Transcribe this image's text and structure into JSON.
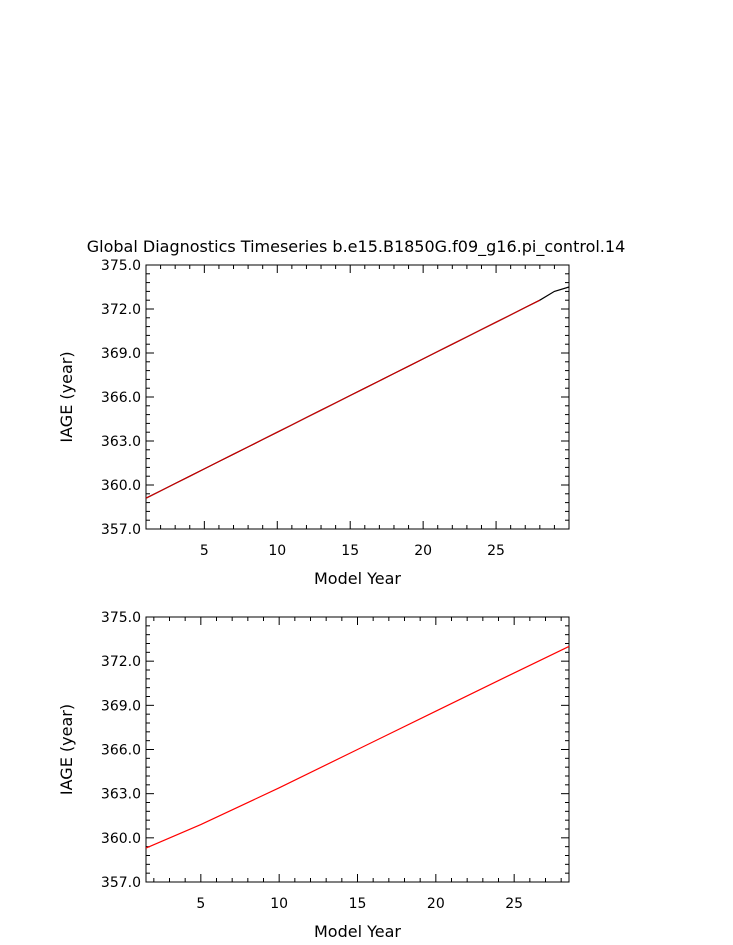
{
  "figure_title": "Global Diagnostics Timeseries b.e15.B1850G.f09_g16.pi_control.14",
  "chart_data": [
    {
      "type": "line",
      "title": "",
      "xlabel": "Model Year",
      "ylabel": "IAGE (year)",
      "xlim": [
        1,
        30
      ],
      "ylim": [
        357.0,
        375.0
      ],
      "x_ticks": [
        5,
        10,
        15,
        20,
        25
      ],
      "x_tick_labels": [
        "5",
        "10",
        "15",
        "20",
        "25"
      ],
      "y_ticks": [
        357.0,
        360.0,
        363.0,
        366.0,
        369.0,
        372.0,
        375.0
      ],
      "y_tick_labels": [
        "357.0",
        "360.0",
        "363.0",
        "366.0",
        "369.0",
        "372.0",
        "375.0"
      ],
      "grid": false,
      "series": [
        {
          "color": "#000000",
          "x": [
            1,
            2,
            3,
            4,
            5,
            6,
            7,
            8,
            9,
            10,
            11,
            12,
            13,
            14,
            15,
            16,
            17,
            18,
            19,
            20,
            21,
            22,
            23,
            24,
            25,
            26,
            27,
            28,
            29,
            30
          ],
          "values": [
            359.1,
            359.6,
            360.1,
            360.6,
            361.1,
            361.6,
            362.1,
            362.6,
            363.1,
            363.6,
            364.1,
            364.6,
            365.1,
            365.6,
            366.1,
            366.6,
            367.1,
            367.6,
            368.1,
            368.6,
            369.1,
            369.6,
            370.1,
            370.6,
            371.1,
            371.6,
            372.1,
            372.6,
            373.2,
            373.5
          ]
        },
        {
          "color": "#cc0000",
          "x": [
            1,
            2,
            3,
            4,
            5,
            6,
            7,
            8,
            9,
            10,
            11,
            12,
            13,
            14,
            15,
            16,
            17,
            18,
            19,
            20,
            21,
            22,
            23,
            24,
            25,
            26,
            27,
            28
          ],
          "values": [
            359.1,
            359.6,
            360.1,
            360.6,
            361.1,
            361.6,
            362.1,
            362.6,
            363.1,
            363.6,
            364.1,
            364.6,
            365.1,
            365.6,
            366.1,
            366.6,
            367.1,
            367.6,
            368.1,
            368.6,
            369.1,
            369.6,
            370.1,
            370.6,
            371.1,
            371.6,
            372.1,
            372.6
          ]
        }
      ]
    },
    {
      "type": "line",
      "title": "",
      "xlabel": "Model Year",
      "ylabel": "IAGE (year)",
      "xlim": [
        1.5,
        28.5
      ],
      "ylim": [
        357.0,
        375.0
      ],
      "x_ticks": [
        5,
        10,
        15,
        20,
        25
      ],
      "x_tick_labels": [
        "5",
        "10",
        "15",
        "20",
        "25"
      ],
      "y_ticks": [
        357.0,
        360.0,
        363.0,
        366.0,
        369.0,
        372.0,
        375.0
      ],
      "y_tick_labels": [
        "357.0",
        "360.0",
        "363.0",
        "366.0",
        "369.0",
        "372.0",
        "375.0"
      ],
      "grid": false,
      "series": [
        {
          "color": "#ff0000",
          "x": [
            1.5,
            5,
            10,
            15,
            20,
            25,
            28.5
          ],
          "values": [
            359.3,
            360.9,
            363.4,
            366.0,
            368.6,
            371.2,
            373.0
          ]
        }
      ]
    }
  ]
}
